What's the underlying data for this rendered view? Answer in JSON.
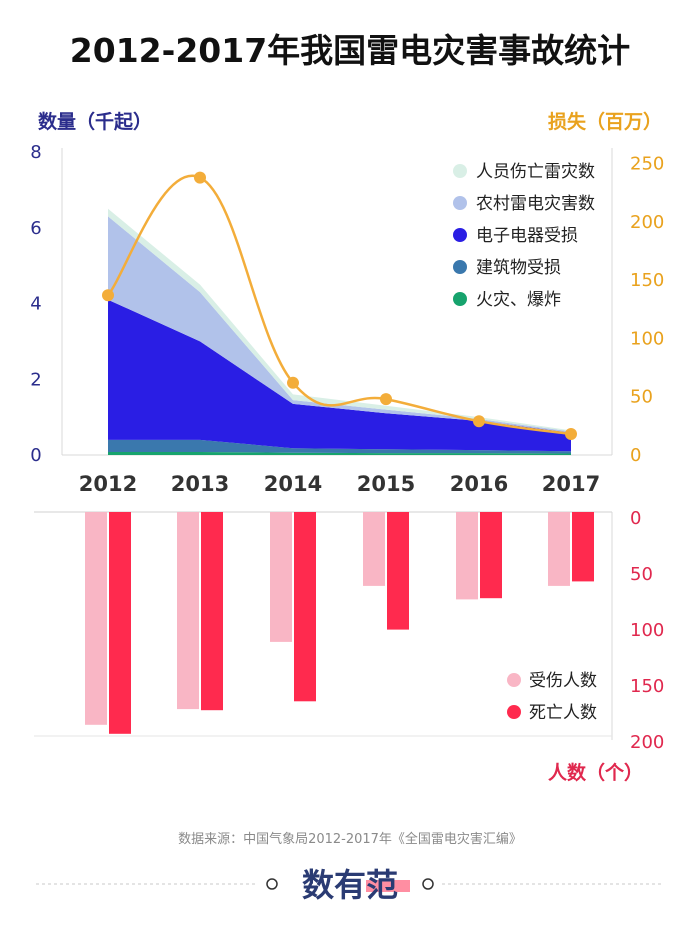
{
  "title": "2012-2017年我国雷电灾害事故统计",
  "source": "数据来源：中国气象局2012-2017年《全国雷电灾害汇编》",
  "brand": "数有范",
  "colors": {
    "left_axis": "#2b2d8c",
    "right_axis": "#e9a21e",
    "bottom_axis": "#e0284e",
    "injured": "#f9b6c5",
    "deaths": "#ff2a4e",
    "casualty": "#d9efe6",
    "rural": "#b1c2ea",
    "electronic": "#2a1ee4",
    "building": "#3a78ad",
    "fire": "#17a36d",
    "loss_line": "#f3ad3a"
  },
  "chart_data": [
    {
      "type": "area",
      "stacked": true,
      "x": [
        "2012",
        "2013",
        "2014",
        "2015",
        "2016",
        "2017"
      ],
      "ylabel": "数量（千起）",
      "ylim": [
        0,
        8
      ],
      "yticks": [
        "0",
        "2",
        "4",
        "6",
        "8"
      ],
      "legend_position": "top-right",
      "series": [
        {
          "name": "火灾、爆炸",
          "values": [
            0.08,
            0.08,
            0.06,
            0.05,
            0.05,
            0.04
          ],
          "color": "#17a36d"
        },
        {
          "name": "建筑物受损",
          "values": [
            0.32,
            0.32,
            0.12,
            0.1,
            0.08,
            0.06
          ],
          "color": "#3a78ad"
        },
        {
          "name": "电子电器受损",
          "values": [
            3.7,
            2.6,
            1.17,
            0.95,
            0.77,
            0.49
          ],
          "color": "#2a1ee4"
        },
        {
          "name": "农村雷电灾害数",
          "values": [
            2.2,
            1.3,
            0.1,
            0.1,
            0.05,
            0.03
          ],
          "color": "#b1c2ea"
        },
        {
          "name": "人员伤亡雷灾数",
          "values": [
            0.2,
            0.2,
            0.15,
            0.1,
            0.05,
            0.03
          ],
          "color": "#d9efe6"
        }
      ]
    },
    {
      "type": "line",
      "x": [
        "2012",
        "2013",
        "2014",
        "2015",
        "2016",
        "2017"
      ],
      "ylabel": "损失（百万）",
      "ylim": [
        0,
        260
      ],
      "yticks": [
        "0",
        "50",
        "100",
        "150",
        "200",
        "250"
      ],
      "values": [
        137,
        238,
        62,
        48,
        29,
        18
      ],
      "color": "#f3ad3a"
    },
    {
      "type": "bar",
      "inverted": true,
      "categories": [
        "2012",
        "2013",
        "2014",
        "2015",
        "2016",
        "2017"
      ],
      "ylabel": "人数（个）",
      "ylim": [
        0,
        200
      ],
      "yticks": [
        "0",
        "50",
        "100",
        "150",
        "200"
      ],
      "legend_position": "bottom-right",
      "series": [
        {
          "name": "受伤人数",
          "values": [
            190,
            176,
            116,
            66,
            78,
            66
          ],
          "color": "#f9b6c5"
        },
        {
          "name": "死亡人数",
          "values": [
            198,
            177,
            169,
            105,
            77,
            62
          ],
          "color": "#ff2a4e"
        }
      ]
    }
  ]
}
